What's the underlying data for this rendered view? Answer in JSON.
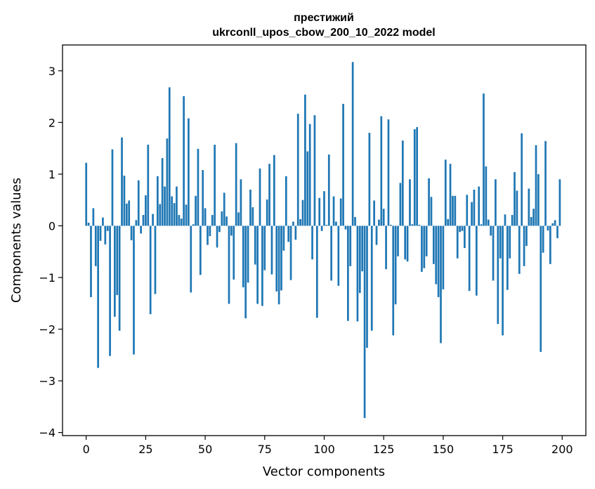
{
  "chart_data": {
    "type": "bar",
    "title": "престижий",
    "subtitle": "ukrconll_upos_cbow_200_10_2022 model",
    "xlabel": "Vector components",
    "ylabel": "Components values",
    "xlim": [
      -9.95,
      209.95
    ],
    "ylim": [
      -4.06,
      3.5
    ],
    "xticks": [
      0,
      25,
      50,
      75,
      100,
      125,
      150,
      175,
      200
    ],
    "yticks": [
      -4,
      -3,
      -2,
      -1,
      0,
      1,
      2,
      3
    ],
    "bar_color": "#1f77b4",
    "grid": false,
    "x": [
      0,
      1,
      2,
      3,
      4,
      5,
      6,
      7,
      8,
      9,
      10,
      11,
      12,
      13,
      14,
      15,
      16,
      17,
      18,
      19,
      20,
      21,
      22,
      23,
      24,
      25,
      26,
      27,
      28,
      29,
      30,
      31,
      32,
      33,
      34,
      35,
      36,
      37,
      38,
      39,
      40,
      41,
      42,
      43,
      44,
      45,
      46,
      47,
      48,
      49,
      50,
      51,
      52,
      53,
      54,
      55,
      56,
      57,
      58,
      59,
      60,
      61,
      62,
      63,
      64,
      65,
      66,
      67,
      68,
      69,
      70,
      71,
      72,
      73,
      74,
      75,
      76,
      77,
      78,
      79,
      80,
      81,
      82,
      83,
      84,
      85,
      86,
      87,
      88,
      89,
      90,
      91,
      92,
      93,
      94,
      95,
      96,
      97,
      98,
      99,
      100,
      101,
      102,
      103,
      104,
      105,
      106,
      107,
      108,
      109,
      110,
      111,
      112,
      113,
      114,
      115,
      116,
      117,
      118,
      119,
      120,
      121,
      122,
      123,
      124,
      125,
      126,
      127,
      128,
      129,
      130,
      131,
      132,
      133,
      134,
      135,
      136,
      137,
      138,
      139,
      140,
      141,
      142,
      143,
      144,
      145,
      146,
      147,
      148,
      149,
      150,
      151,
      152,
      153,
      154,
      155,
      156,
      157,
      158,
      159,
      160,
      161,
      162,
      163,
      164,
      165,
      166,
      167,
      168,
      169,
      170,
      171,
      172,
      173,
      174,
      175,
      176,
      177,
      178,
      179,
      180,
      181,
      182,
      183,
      184,
      185,
      186,
      187,
      188,
      189,
      190,
      191,
      192,
      193,
      194,
      195,
      196,
      197,
      198,
      199
    ],
    "values": [
      1.22,
      0.06,
      -1.38,
      0.34,
      -0.78,
      -2.75,
      -0.29,
      0.16,
      -0.36,
      -0.1,
      -2.52,
      1.48,
      -1.76,
      -1.34,
      -2.03,
      1.71,
      0.97,
      0.43,
      0.49,
      -0.28,
      -2.49,
      0.11,
      0.88,
      -0.15,
      0.21,
      0.59,
      1.57,
      -1.71,
      0.23,
      -1.32,
      0.96,
      0.42,
      1.31,
      0.76,
      1.69,
      2.68,
      0.57,
      0.44,
      0.76,
      0.21,
      0.14,
      2.51,
      0.41,
      2.08,
      -1.29,
      0.03,
      0.58,
      1.49,
      -0.95,
      1.08,
      0.34,
      -0.37,
      -0.2,
      0.21,
      1.57,
      -0.42,
      -0.12,
      0.28,
      0.64,
      0.18,
      -1.51,
      -0.19,
      -1.04,
      1.6,
      0.26,
      0.9,
      -1.19,
      -1.79,
      -1.1,
      0.7,
      0.36,
      -0.75,
      -1.51,
      1.11,
      -1.55,
      -0.86,
      0.51,
      1.2,
      -0.94,
      1.37,
      -1.27,
      -1.52,
      -1.25,
      -0.48,
      0.96,
      -0.31,
      -1.05,
      0.08,
      -0.27,
      2.17,
      0.13,
      0.5,
      2.54,
      1.44,
      1.97,
      -0.65,
      2.14,
      -1.78,
      0.54,
      -0.1,
      0.67,
      0.02,
      1.38,
      -1.06,
      0.57,
      0.08,
      -1.16,
      0.53,
      2.36,
      -0.07,
      -1.84,
      -0.78,
      3.17,
      0.17,
      -1.85,
      -1.3,
      -0.88,
      -3.72,
      -2.36,
      1.8,
      -2.03,
      0.49,
      -0.37,
      0.12,
      2.12,
      0.33,
      -0.84,
      2.06,
      0.02,
      -2.12,
      -1.52,
      -0.59,
      0.83,
      1.65,
      -0.65,
      -0.69,
      0.9,
      0.03,
      1.87,
      1.91,
      0.02,
      -0.89,
      -0.82,
      -0.59,
      0.92,
      0.56,
      -0.74,
      -1.13,
      -1.38,
      -2.27,
      -1.23,
      1.28,
      0.13,
      1.2,
      0.58,
      0.58,
      -0.63,
      -0.12,
      -0.1,
      -0.43,
      0.6,
      -1.26,
      0.46,
      0.7,
      -1.35,
      0.76,
      0.03,
      2.56,
      1.15,
      0.12,
      -0.19,
      -1.06,
      0.9,
      -1.9,
      -0.63,
      -2.12,
      0.22,
      -1.24,
      -0.63,
      0.21,
      1.04,
      0.68,
      -0.93,
      1.79,
      -0.78,
      -0.39,
      0.72,
      0.17,
      0.33,
      1.56,
      1.0,
      -2.44,
      -0.52,
      1.64,
      -0.09,
      -0.74,
      0.05,
      0.11,
      -0.24,
      0.9
    ]
  }
}
